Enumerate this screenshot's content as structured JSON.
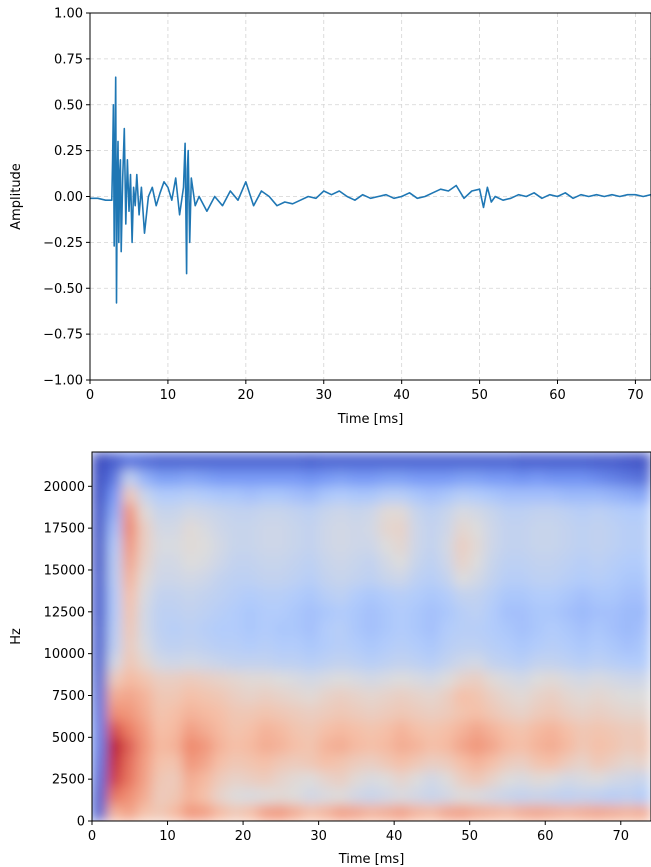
{
  "chart_data": [
    {
      "type": "line",
      "xlabel": "Time [ms]",
      "ylabel": "Amplitude",
      "xlim": [
        0,
        72
      ],
      "ylim": [
        -1.0,
        1.0
      ],
      "x_ticks": [
        0,
        10,
        20,
        30,
        40,
        50,
        60,
        70
      ],
      "x_tick_labels": [
        "0",
        "10",
        "20",
        "30",
        "40",
        "50",
        "60",
        "70"
      ],
      "y_ticks": [
        -1.0,
        -0.75,
        -0.5,
        -0.25,
        0.0,
        0.25,
        0.5,
        0.75,
        1.0
      ],
      "y_tick_labels": [
        "−1.00",
        "−0.75",
        "−0.50",
        "−0.25",
        "0.00",
        "0.25",
        "0.50",
        "0.75",
        "1.00"
      ],
      "grid": true,
      "grid_style": "dashed",
      "line_color": "#1f77b4",
      "series": [
        {
          "x": [
            0,
            1,
            2,
            2.8,
            2.9,
            3.0,
            3.1,
            3.2,
            3.3,
            3.4,
            3.5,
            3.6,
            3.7,
            3.8,
            3.9,
            4.0,
            4.2,
            4.4,
            4.6,
            4.8,
            5.0,
            5.2,
            5.4,
            5.6,
            5.8,
            6.0,
            6.3,
            6.6,
            7.0,
            7.5,
            8.0,
            8.5,
            9.0,
            9.5,
            10,
            10.5,
            11,
            11.5,
            12.0,
            12.2,
            12.4,
            12.5,
            12.6,
            12.8,
            13.0,
            13.5,
            14,
            15,
            16,
            17,
            18,
            19,
            20,
            21,
            22,
            23,
            24,
            25,
            26,
            27,
            28,
            29,
            30,
            31,
            32,
            33,
            34,
            35,
            36,
            37,
            38,
            39,
            40,
            41,
            42,
            43,
            44,
            45,
            46,
            47,
            48,
            49,
            50,
            50.5,
            51,
            51.5,
            52,
            53,
            54,
            55,
            56,
            57,
            58,
            59,
            60,
            61,
            62,
            63,
            64,
            65,
            66,
            67,
            68,
            69,
            70,
            71,
            72
          ],
          "y": [
            -0.01,
            -0.01,
            -0.02,
            -0.02,
            0.2,
            0.5,
            -0.27,
            0.18,
            0.65,
            -0.58,
            0.1,
            0.3,
            -0.25,
            0.12,
            0.2,
            -0.3,
            0.1,
            0.37,
            -0.15,
            0.2,
            -0.08,
            0.12,
            -0.25,
            0.05,
            -0.05,
            0.12,
            -0.1,
            0.05,
            -0.2,
            0.0,
            0.05,
            -0.05,
            0.02,
            0.08,
            0.05,
            -0.02,
            0.1,
            -0.1,
            0.05,
            0.29,
            -0.42,
            0.15,
            0.25,
            -0.25,
            0.1,
            -0.05,
            0.0,
            -0.08,
            0.0,
            -0.05,
            0.03,
            -0.02,
            0.08,
            -0.05,
            0.03,
            0.0,
            -0.05,
            -0.03,
            -0.04,
            -0.02,
            0.0,
            -0.01,
            0.03,
            0.01,
            0.03,
            0.0,
            -0.02,
            0.01,
            -0.01,
            0.0,
            0.01,
            -0.01,
            0.0,
            0.02,
            -0.01,
            0.0,
            0.02,
            0.04,
            0.03,
            0.06,
            -0.01,
            0.03,
            0.04,
            -0.06,
            0.05,
            -0.03,
            0.0,
            -0.02,
            -0.01,
            0.01,
            0.0,
            0.02,
            -0.01,
            0.01,
            0.0,
            0.02,
            -0.01,
            0.01,
            0.0,
            0.01,
            0.0,
            0.01,
            0.0,
            0.01,
            0.01,
            0.0,
            0.01
          ]
        }
      ]
    },
    {
      "type": "heatmap",
      "xlabel": "Time [ms]",
      "ylabel": "Hz",
      "xlim": [
        0,
        74
      ],
      "ylim": [
        0,
        22050
      ],
      "x_ticks": [
        0,
        10,
        20,
        30,
        40,
        50,
        60,
        70
      ],
      "x_tick_labels": [
        "0",
        "10",
        "20",
        "30",
        "40",
        "50",
        "60",
        "70"
      ],
      "y_ticks": [
        0,
        2500,
        5000,
        7500,
        10000,
        12500,
        15000,
        17500,
        20000
      ],
      "y_tick_labels": [
        "0",
        "2500",
        "5000",
        "7500",
        "10000",
        "12500",
        "15000",
        "17500",
        "20000"
      ],
      "colormap": "coolwarm",
      "colormap_stops": [
        "#3b4cc0",
        "#7396f5",
        "#b0cbfc",
        "#dddcdc",
        "#f6bfa6",
        "#ee8468",
        "#b40426"
      ],
      "x_centers": [
        1,
        3,
        5,
        7,
        9,
        11,
        13,
        15,
        17,
        19,
        21,
        23,
        25,
        27,
        29,
        31,
        33,
        35,
        37,
        39,
        41,
        43,
        45,
        47,
        49,
        51,
        53,
        55,
        57,
        59,
        61,
        63,
        65,
        67,
        69,
        71,
        73
      ],
      "y_centers": [
        500,
        1500,
        2500,
        3500,
        4500,
        5500,
        6500,
        7500,
        8500,
        9500,
        10500,
        11500,
        12500,
        13500,
        14500,
        15500,
        16500,
        17500,
        18500,
        19500,
        20500,
        21500
      ],
      "z": [
        [
          0.05,
          0.7,
          0.75,
          0.65,
          0.62,
          0.68,
          0.78,
          0.76,
          0.68,
          0.62,
          0.66,
          0.76,
          0.78,
          0.72,
          0.66,
          0.7,
          0.76,
          0.74,
          0.7,
          0.72,
          0.76,
          0.7,
          0.68,
          0.74,
          0.76,
          0.72,
          0.7,
          0.68,
          0.72,
          0.74,
          0.72,
          0.7,
          0.72,
          0.74,
          0.72,
          0.7,
          0.72
        ],
        [
          0.05,
          0.85,
          0.8,
          0.72,
          0.6,
          0.62,
          0.7,
          0.65,
          0.55,
          0.5,
          0.48,
          0.5,
          0.52,
          0.5,
          0.45,
          0.48,
          0.5,
          0.45,
          0.42,
          0.45,
          0.48,
          0.45,
          0.42,
          0.45,
          0.5,
          0.48,
          0.45,
          0.42,
          0.4,
          0.42,
          0.4,
          0.38,
          0.4,
          0.38,
          0.36,
          0.38,
          0.35
        ],
        [
          0.08,
          0.92,
          0.85,
          0.75,
          0.62,
          0.6,
          0.72,
          0.68,
          0.6,
          0.56,
          0.58,
          0.6,
          0.55,
          0.52,
          0.5,
          0.55,
          0.58,
          0.52,
          0.48,
          0.5,
          0.55,
          0.5,
          0.45,
          0.5,
          0.58,
          0.62,
          0.56,
          0.5,
          0.48,
          0.52,
          0.5,
          0.46,
          0.48,
          0.5,
          0.46,
          0.44,
          0.42
        ],
        [
          0.1,
          0.95,
          0.86,
          0.76,
          0.65,
          0.64,
          0.78,
          0.74,
          0.66,
          0.62,
          0.64,
          0.66,
          0.62,
          0.6,
          0.62,
          0.66,
          0.64,
          0.6,
          0.58,
          0.62,
          0.66,
          0.62,
          0.58,
          0.6,
          0.66,
          0.7,
          0.66,
          0.6,
          0.58,
          0.64,
          0.66,
          0.6,
          0.56,
          0.62,
          0.58,
          0.54,
          0.56
        ],
        [
          0.12,
          0.98,
          0.88,
          0.78,
          0.68,
          0.7,
          0.82,
          0.78,
          0.7,
          0.66,
          0.68,
          0.72,
          0.7,
          0.66,
          0.64,
          0.7,
          0.72,
          0.68,
          0.66,
          0.68,
          0.72,
          0.7,
          0.66,
          0.68,
          0.74,
          0.78,
          0.74,
          0.68,
          0.66,
          0.7,
          0.72,
          0.68,
          0.62,
          0.66,
          0.64,
          0.6,
          0.62
        ],
        [
          0.12,
          0.9,
          0.84,
          0.76,
          0.66,
          0.68,
          0.76,
          0.72,
          0.68,
          0.64,
          0.66,
          0.7,
          0.68,
          0.64,
          0.62,
          0.66,
          0.68,
          0.66,
          0.64,
          0.66,
          0.7,
          0.66,
          0.64,
          0.66,
          0.7,
          0.74,
          0.7,
          0.66,
          0.64,
          0.68,
          0.7,
          0.66,
          0.62,
          0.64,
          0.62,
          0.6,
          0.6
        ],
        [
          0.1,
          0.8,
          0.78,
          0.72,
          0.64,
          0.66,
          0.7,
          0.68,
          0.66,
          0.62,
          0.62,
          0.64,
          0.62,
          0.6,
          0.58,
          0.6,
          0.62,
          0.6,
          0.58,
          0.6,
          0.62,
          0.6,
          0.58,
          0.6,
          0.64,
          0.66,
          0.62,
          0.58,
          0.56,
          0.6,
          0.62,
          0.58,
          0.56,
          0.58,
          0.56,
          0.54,
          0.54
        ],
        [
          0.08,
          0.72,
          0.74,
          0.7,
          0.62,
          0.62,
          0.66,
          0.64,
          0.62,
          0.58,
          0.56,
          0.58,
          0.56,
          0.54,
          0.52,
          0.56,
          0.58,
          0.56,
          0.54,
          0.56,
          0.58,
          0.56,
          0.54,
          0.58,
          0.66,
          0.64,
          0.58,
          0.54,
          0.52,
          0.56,
          0.58,
          0.54,
          0.52,
          0.54,
          0.52,
          0.5,
          0.5
        ],
        [
          0.06,
          0.6,
          0.68,
          0.64,
          0.58,
          0.58,
          0.6,
          0.58,
          0.56,
          0.54,
          0.52,
          0.52,
          0.5,
          0.48,
          0.46,
          0.48,
          0.5,
          0.48,
          0.46,
          0.48,
          0.5,
          0.48,
          0.46,
          0.5,
          0.56,
          0.58,
          0.52,
          0.48,
          0.46,
          0.5,
          0.52,
          0.48,
          0.46,
          0.48,
          0.46,
          0.44,
          0.44
        ],
        [
          0.05,
          0.45,
          0.62,
          0.54,
          0.46,
          0.44,
          0.46,
          0.44,
          0.42,
          0.4,
          0.4,
          0.4,
          0.38,
          0.38,
          0.36,
          0.38,
          0.4,
          0.38,
          0.36,
          0.38,
          0.4,
          0.38,
          0.36,
          0.4,
          0.44,
          0.46,
          0.4,
          0.38,
          0.36,
          0.4,
          0.4,
          0.38,
          0.36,
          0.38,
          0.36,
          0.34,
          0.34
        ],
        [
          0.04,
          0.38,
          0.6,
          0.48,
          0.4,
          0.38,
          0.4,
          0.38,
          0.36,
          0.36,
          0.34,
          0.36,
          0.34,
          0.34,
          0.32,
          0.34,
          0.36,
          0.34,
          0.32,
          0.34,
          0.36,
          0.34,
          0.32,
          0.36,
          0.38,
          0.38,
          0.36,
          0.34,
          0.32,
          0.34,
          0.36,
          0.34,
          0.32,
          0.34,
          0.32,
          0.3,
          0.32
        ],
        [
          0.04,
          0.36,
          0.62,
          0.46,
          0.38,
          0.36,
          0.38,
          0.36,
          0.34,
          0.34,
          0.32,
          0.34,
          0.32,
          0.32,
          0.3,
          0.34,
          0.36,
          0.32,
          0.3,
          0.32,
          0.34,
          0.32,
          0.3,
          0.34,
          0.36,
          0.36,
          0.34,
          0.32,
          0.3,
          0.32,
          0.34,
          0.32,
          0.3,
          0.32,
          0.3,
          0.28,
          0.3
        ],
        [
          0.03,
          0.34,
          0.64,
          0.46,
          0.38,
          0.38,
          0.4,
          0.38,
          0.36,
          0.34,
          0.32,
          0.34,
          0.34,
          0.32,
          0.3,
          0.32,
          0.34,
          0.32,
          0.3,
          0.32,
          0.34,
          0.32,
          0.3,
          0.32,
          0.36,
          0.38,
          0.34,
          0.3,
          0.3,
          0.32,
          0.32,
          0.3,
          0.28,
          0.3,
          0.3,
          0.28,
          0.28
        ],
        [
          0.03,
          0.34,
          0.66,
          0.48,
          0.4,
          0.4,
          0.42,
          0.4,
          0.38,
          0.36,
          0.34,
          0.36,
          0.36,
          0.34,
          0.32,
          0.36,
          0.38,
          0.34,
          0.32,
          0.34,
          0.36,
          0.34,
          0.32,
          0.34,
          0.4,
          0.4,
          0.36,
          0.32,
          0.32,
          0.34,
          0.34,
          0.32,
          0.3,
          0.32,
          0.32,
          0.3,
          0.3
        ],
        [
          0.03,
          0.36,
          0.7,
          0.52,
          0.44,
          0.44,
          0.46,
          0.44,
          0.4,
          0.38,
          0.38,
          0.4,
          0.4,
          0.38,
          0.36,
          0.4,
          0.42,
          0.4,
          0.38,
          0.42,
          0.44,
          0.38,
          0.36,
          0.4,
          0.5,
          0.46,
          0.4,
          0.36,
          0.36,
          0.38,
          0.38,
          0.36,
          0.34,
          0.36,
          0.34,
          0.32,
          0.32
        ],
        [
          0.02,
          0.36,
          0.74,
          0.56,
          0.46,
          0.46,
          0.5,
          0.48,
          0.44,
          0.4,
          0.4,
          0.42,
          0.42,
          0.4,
          0.38,
          0.42,
          0.44,
          0.42,
          0.4,
          0.46,
          0.5,
          0.42,
          0.38,
          0.44,
          0.56,
          0.5,
          0.42,
          0.38,
          0.38,
          0.4,
          0.4,
          0.38,
          0.36,
          0.38,
          0.36,
          0.34,
          0.34
        ],
        [
          0.02,
          0.34,
          0.78,
          0.58,
          0.48,
          0.48,
          0.52,
          0.5,
          0.46,
          0.42,
          0.42,
          0.44,
          0.44,
          0.42,
          0.4,
          0.44,
          0.46,
          0.44,
          0.44,
          0.5,
          0.54,
          0.44,
          0.4,
          0.46,
          0.58,
          0.52,
          0.44,
          0.4,
          0.4,
          0.42,
          0.42,
          0.4,
          0.38,
          0.4,
          0.38,
          0.36,
          0.36
        ],
        [
          0.02,
          0.3,
          0.82,
          0.58,
          0.46,
          0.46,
          0.52,
          0.48,
          0.44,
          0.42,
          0.42,
          0.44,
          0.44,
          0.42,
          0.4,
          0.44,
          0.46,
          0.44,
          0.46,
          0.54,
          0.56,
          0.44,
          0.4,
          0.44,
          0.54,
          0.5,
          0.44,
          0.4,
          0.4,
          0.42,
          0.42,
          0.4,
          0.38,
          0.4,
          0.38,
          0.36,
          0.36
        ],
        [
          0.02,
          0.24,
          0.78,
          0.52,
          0.42,
          0.42,
          0.46,
          0.44,
          0.42,
          0.4,
          0.4,
          0.42,
          0.42,
          0.4,
          0.38,
          0.42,
          0.44,
          0.42,
          0.44,
          0.52,
          0.52,
          0.42,
          0.38,
          0.42,
          0.48,
          0.46,
          0.42,
          0.38,
          0.38,
          0.4,
          0.4,
          0.38,
          0.36,
          0.38,
          0.36,
          0.34,
          0.34
        ],
        [
          0.01,
          0.18,
          0.62,
          0.42,
          0.34,
          0.34,
          0.36,
          0.34,
          0.32,
          0.32,
          0.3,
          0.32,
          0.32,
          0.3,
          0.28,
          0.32,
          0.34,
          0.32,
          0.32,
          0.36,
          0.36,
          0.32,
          0.3,
          0.32,
          0.36,
          0.34,
          0.32,
          0.3,
          0.3,
          0.3,
          0.3,
          0.28,
          0.28,
          0.28,
          0.26,
          0.24,
          0.22
        ],
        [
          0.01,
          0.1,
          0.4,
          0.26,
          0.2,
          0.2,
          0.22,
          0.2,
          0.18,
          0.18,
          0.18,
          0.18,
          0.18,
          0.18,
          0.16,
          0.18,
          0.2,
          0.18,
          0.18,
          0.2,
          0.2,
          0.18,
          0.18,
          0.18,
          0.2,
          0.2,
          0.18,
          0.18,
          0.16,
          0.18,
          0.16,
          0.16,
          0.16,
          0.14,
          0.12,
          0.1,
          0.08
        ],
        [
          0.0,
          0.04,
          0.1,
          0.08,
          0.06,
          0.06,
          0.06,
          0.06,
          0.06,
          0.06,
          0.06,
          0.06,
          0.06,
          0.06,
          0.05,
          0.06,
          0.06,
          0.06,
          0.06,
          0.06,
          0.06,
          0.06,
          0.06,
          0.06,
          0.06,
          0.06,
          0.06,
          0.06,
          0.05,
          0.05,
          0.05,
          0.05,
          0.05,
          0.04,
          0.04,
          0.03,
          0.02
        ]
      ]
    }
  ]
}
